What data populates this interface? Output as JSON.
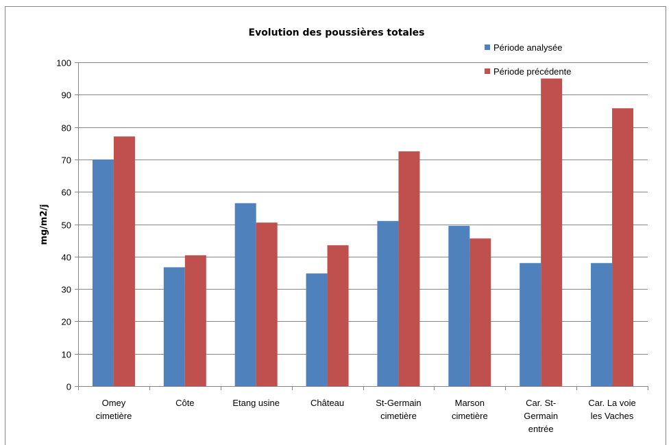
{
  "chart_data": {
    "type": "bar",
    "title": "Evolution des poussières totales",
    "xlabel": "",
    "ylabel": "mg/m2/j",
    "ylim": [
      0,
      100
    ],
    "yticks": [
      0,
      10,
      20,
      30,
      40,
      50,
      60,
      70,
      80,
      90,
      100
    ],
    "grid": true,
    "legend_position": "top-right",
    "categories": [
      [
        "Omey",
        "cimetière"
      ],
      [
        "Côte"
      ],
      [
        "Etang usine"
      ],
      [
        "Château"
      ],
      [
        "St-Germain",
        "cimetière"
      ],
      [
        "Marson",
        "cimetière"
      ],
      [
        "Car. St-",
        "Germain",
        "entrée"
      ],
      [
        "Car. La voie",
        "les Vaches"
      ]
    ],
    "series": [
      {
        "name": "Période analysée",
        "color": "#4f81bd",
        "values": [
          70,
          36.7,
          56.5,
          34.8,
          51,
          49.5,
          38,
          38
        ]
      },
      {
        "name": "Période précédente",
        "color": "#c0504d",
        "values": [
          77.1,
          40.4,
          50.5,
          43.5,
          72.5,
          45.6,
          95,
          85.8
        ]
      }
    ]
  }
}
